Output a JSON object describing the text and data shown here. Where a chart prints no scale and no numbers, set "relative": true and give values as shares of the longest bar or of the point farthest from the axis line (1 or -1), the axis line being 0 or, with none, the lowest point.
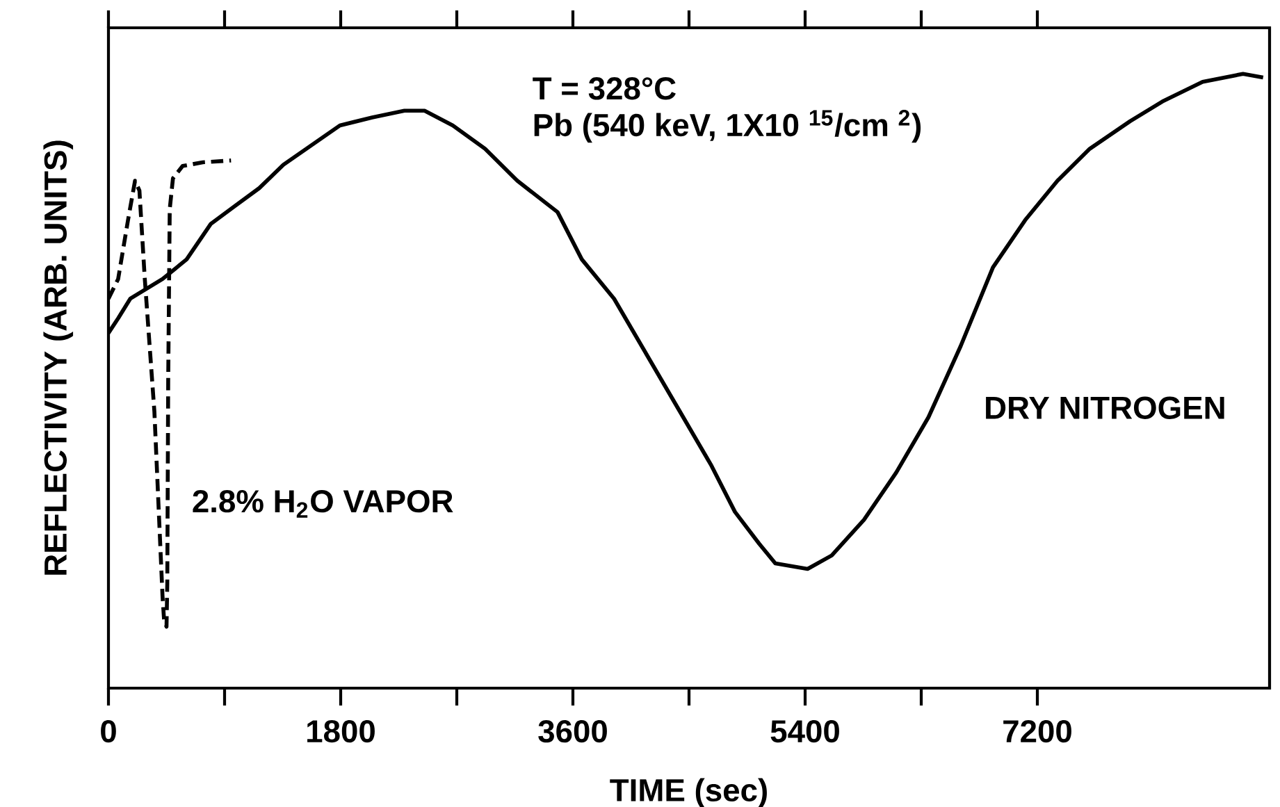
{
  "chart_data": {
    "type": "line",
    "relative": true,
    "xlabel": "TIME (sec)",
    "ylabel": "REFLECTIVITY (ARB. UNITS)",
    "xlim": [
      0,
      9000
    ],
    "xticks": [
      0,
      1800,
      3600,
      5400,
      7200
    ],
    "grid": false,
    "annotations": [
      "T = 328°C",
      "Pb (540 keV, 1X10 $^{15}$/cm $^{2}$)"
    ],
    "series": [
      {
        "name": "DRY NITROGEN",
        "color": "#000000",
        "line_style": "solid",
        "x": [
          0,
          75,
          169,
          419,
          606,
          794,
          981,
          1169,
          1356,
          1575,
          1794,
          2044,
          2294,
          2450,
          2669,
          2919,
          3169,
          3481,
          3669,
          3919,
          4169,
          4419,
          4669,
          4856,
          5044,
          5169,
          5419,
          5606,
          5856,
          6106,
          6356,
          6606,
          6856,
          7106,
          7356,
          7606,
          7919,
          8169,
          8481,
          8794,
          8950
        ],
        "values": [
          0.578,
          0.602,
          0.634,
          0.666,
          0.698,
          0.756,
          0.785,
          0.814,
          0.852,
          0.884,
          0.916,
          0.929,
          0.94,
          0.94,
          0.916,
          0.878,
          0.826,
          0.775,
          0.698,
          0.634,
          0.544,
          0.454,
          0.364,
          0.287,
          0.235,
          0.203,
          0.194,
          0.216,
          0.274,
          0.351,
          0.441,
          0.557,
          0.685,
          0.762,
          0.826,
          0.878,
          0.923,
          0.955,
          0.987,
          1.0,
          0.994
        ]
      },
      {
        "name": "2.8% H$_{2}$O VAPOR",
        "color": "#000000",
        "line_style": "dashed",
        "x": [
          0,
          75,
          150,
          206,
          240,
          281,
          356,
          419,
          431,
          450,
          456,
          463,
          475,
          500,
          575,
          731,
          950
        ],
        "values": [
          0.634,
          0.666,
          0.76,
          0.826,
          0.81,
          0.668,
          0.45,
          0.15,
          0.111,
          0.1,
          0.17,
          0.5,
          0.78,
          0.83,
          0.85,
          0.856,
          0.859
        ]
      }
    ]
  }
}
